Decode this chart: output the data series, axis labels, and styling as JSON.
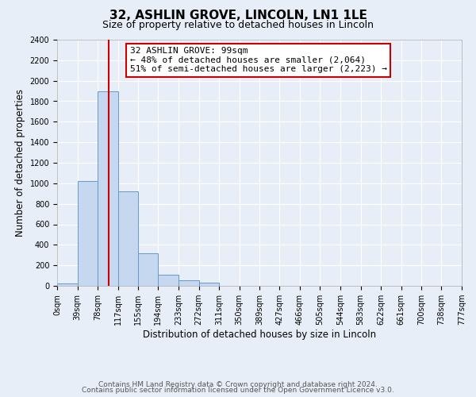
{
  "title": "32, ASHLIN GROVE, LINCOLN, LN1 1LE",
  "subtitle": "Size of property relative to detached houses in Lincoln",
  "xlabel": "Distribution of detached houses by size in Lincoln",
  "ylabel": "Number of detached properties",
  "bin_edges": [
    0,
    39,
    78,
    117,
    155,
    194,
    233,
    272,
    311,
    350,
    389,
    427,
    466,
    505,
    544,
    583,
    622,
    661,
    700,
    738,
    777
  ],
  "bar_heights": [
    25,
    1020,
    1900,
    920,
    320,
    110,
    55,
    30,
    0,
    0,
    0,
    0,
    0,
    0,
    0,
    0,
    0,
    0,
    0,
    0
  ],
  "bar_color": "#c5d8f0",
  "bar_edge_color": "#6699cc",
  "property_line_x": 99,
  "property_line_color": "#cc0000",
  "ylim": [
    0,
    2400
  ],
  "yticks": [
    0,
    200,
    400,
    600,
    800,
    1000,
    1200,
    1400,
    1600,
    1800,
    2000,
    2200,
    2400
  ],
  "xtick_labels": [
    "0sqm",
    "39sqm",
    "78sqm",
    "117sqm",
    "155sqm",
    "194sqm",
    "233sqm",
    "272sqm",
    "311sqm",
    "350sqm",
    "389sqm",
    "427sqm",
    "466sqm",
    "505sqm",
    "544sqm",
    "583sqm",
    "622sqm",
    "661sqm",
    "700sqm",
    "738sqm",
    "777sqm"
  ],
  "annotation_title": "32 ASHLIN GROVE: 99sqm",
  "annotation_line1": "← 48% of detached houses are smaller (2,064)",
  "annotation_line2": "51% of semi-detached houses are larger (2,223) →",
  "annotation_box_color": "#ffffff",
  "annotation_box_edge": "#cc0000",
  "footer1": "Contains HM Land Registry data © Crown copyright and database right 2024.",
  "footer2": "Contains public sector information licensed under the Open Government Licence v3.0.",
  "background_color": "#e8eef7",
  "plot_background": "#e8eef7",
  "grid_color": "#ffffff",
  "title_fontsize": 11,
  "subtitle_fontsize": 9,
  "axis_label_fontsize": 8.5,
  "tick_fontsize": 7,
  "footer_fontsize": 6.5,
  "annotation_fontsize": 8
}
